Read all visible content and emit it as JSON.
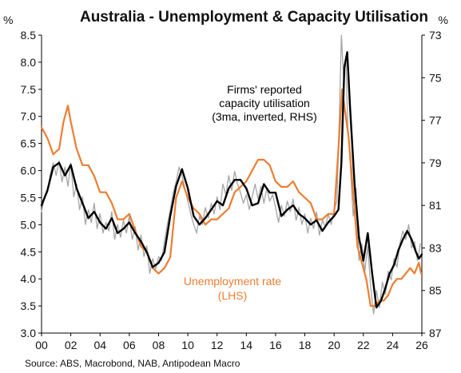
{
  "chart_data": {
    "type": "line",
    "title": "Australia - Unemployment & Capacity Utilisation",
    "left_unit": "%",
    "right_unit": "%",
    "source": "Source: ABS, Macrobond, NAB, Antipodean Macro",
    "x_ticks": [
      "00",
      "02",
      "04",
      "06",
      "08",
      "10",
      "12",
      "14",
      "16",
      "18",
      "20",
      "22",
      "24",
      "26"
    ],
    "left_ticks": [
      "3.0",
      "3.5",
      "4.0",
      "4.5",
      "5.0",
      "5.5",
      "6.0",
      "6.5",
      "7.0",
      "7.5",
      "8.0",
      "8.5"
    ],
    "right_ticks": [
      "73",
      "75",
      "77",
      "79",
      "81",
      "83",
      "85",
      "87"
    ],
    "xlim": [
      2000,
      2026
    ],
    "ylim_left": [
      3.0,
      8.5
    ],
    "ylim_right_inverted": [
      73,
      87
    ],
    "grid": false,
    "annotations": {
      "capacity": [
        "Firms' reported",
        "capacity utilisation",
        "(3ma, inverted, RHS)"
      ],
      "unemployment": [
        "Unemployment rate",
        "(LHS)"
      ]
    },
    "colors": {
      "unemployment": "#ed7d31",
      "capacity_3ma": "#000000",
      "capacity_monthly": "#a6a6a6"
    },
    "series": [
      {
        "name": "Unemployment rate (LHS)",
        "axis": "left",
        "x": [
          2000.0,
          2000.4,
          2000.8,
          2001.2,
          2001.5,
          2001.8,
          2002.0,
          2002.4,
          2002.8,
          2003.2,
          2003.6,
          2004.0,
          2004.4,
          2004.8,
          2005.2,
          2005.6,
          2006.0,
          2006.4,
          2006.8,
          2007.2,
          2007.6,
          2008.0,
          2008.4,
          2008.8,
          2009.2,
          2009.6,
          2010.0,
          2010.4,
          2010.8,
          2011.2,
          2011.6,
          2012.0,
          2012.4,
          2012.8,
          2013.2,
          2013.6,
          2014.0,
          2014.4,
          2014.8,
          2015.2,
          2015.6,
          2016.0,
          2016.4,
          2016.8,
          2017.2,
          2017.6,
          2018.0,
          2018.4,
          2018.8,
          2019.2,
          2019.6,
          2020.0,
          2020.3,
          2020.55,
          2020.8,
          2021.0,
          2021.3,
          2021.6,
          2021.9,
          2022.2,
          2022.5,
          2022.8,
          2023.1,
          2023.4,
          2023.7,
          2024.0,
          2024.3,
          2024.6,
          2024.9,
          2025.2,
          2025.5,
          2025.8,
          2025.95
        ],
        "values": [
          6.8,
          6.6,
          6.3,
          6.4,
          6.9,
          7.2,
          6.9,
          6.4,
          6.1,
          6.1,
          5.9,
          5.6,
          5.6,
          5.4,
          5.1,
          5.1,
          5.2,
          4.9,
          4.6,
          4.5,
          4.2,
          4.1,
          4.2,
          4.4,
          5.5,
          5.8,
          5.5,
          5.3,
          5.2,
          5.0,
          5.1,
          5.1,
          5.2,
          5.3,
          5.6,
          5.7,
          5.8,
          6.0,
          6.2,
          6.2,
          6.1,
          5.8,
          5.7,
          5.7,
          5.8,
          5.6,
          5.5,
          5.4,
          5.1,
          5.1,
          5.2,
          5.2,
          6.4,
          7.5,
          7.0,
          6.6,
          5.6,
          4.6,
          4.3,
          4.0,
          3.5,
          3.5,
          3.6,
          3.6,
          3.7,
          3.9,
          4.0,
          4.0,
          4.1,
          4.2,
          4.1,
          4.3,
          4.1
        ]
      },
      {
        "name": "Firms' reported capacity utilisation (3ma, inverted, RHS)",
        "axis": "right",
        "x": [
          2000.0,
          2000.4,
          2000.8,
          2001.2,
          2001.6,
          2002.0,
          2002.4,
          2002.8,
          2003.2,
          2003.6,
          2004.0,
          2004.4,
          2004.8,
          2005.2,
          2005.6,
          2006.0,
          2006.4,
          2006.8,
          2007.2,
          2007.6,
          2008.0,
          2008.4,
          2008.8,
          2009.2,
          2009.6,
          2010.0,
          2010.4,
          2010.8,
          2011.2,
          2011.6,
          2012.0,
          2012.4,
          2012.8,
          2013.2,
          2013.6,
          2014.0,
          2014.4,
          2014.8,
          2015.2,
          2015.6,
          2016.0,
          2016.4,
          2016.8,
          2017.2,
          2017.6,
          2018.0,
          2018.4,
          2018.8,
          2019.2,
          2019.6,
          2020.0,
          2020.3,
          2020.5,
          2020.7,
          2020.9,
          2021.1,
          2021.4,
          2021.7,
          2022.0,
          2022.3,
          2022.6,
          2022.9,
          2023.2,
          2023.5,
          2023.8,
          2024.1,
          2024.4,
          2024.7,
          2025.0,
          2025.3,
          2025.6,
          2025.8,
          2026.0
        ],
        "values": [
          81.0,
          80.3,
          79.2,
          79.0,
          79.6,
          79.1,
          80.2,
          80.9,
          81.6,
          81.3,
          81.8,
          82.1,
          81.6,
          82.3,
          82.1,
          81.8,
          82.3,
          82.7,
          83.2,
          83.9,
          83.7,
          83.2,
          81.5,
          80.1,
          79.3,
          80.2,
          81.5,
          81.9,
          81.6,
          81.2,
          80.8,
          81.0,
          80.2,
          79.8,
          79.8,
          80.2,
          81.0,
          80.9,
          80.0,
          80.4,
          80.4,
          81.5,
          81.2,
          81.0,
          81.4,
          81.6,
          81.9,
          81.7,
          82.2,
          81.8,
          81.5,
          81.2,
          79.0,
          74.5,
          73.8,
          76.5,
          80.0,
          82.5,
          83.6,
          82.3,
          84.2,
          85.8,
          85.5,
          84.9,
          84.2,
          83.8,
          83.1,
          82.6,
          82.2,
          82.6,
          83.2,
          83.5,
          83.3
        ]
      },
      {
        "name": "Firms' reported capacity utilisation (monthly)",
        "axis": "right",
        "x": [
          2000.0,
          2000.2,
          2000.4,
          2000.6,
          2000.8,
          2001.0,
          2001.2,
          2001.4,
          2001.6,
          2001.8,
          2002.0,
          2002.2,
          2002.4,
          2002.6,
          2002.8,
          2003.0,
          2003.2,
          2003.4,
          2003.6,
          2003.8,
          2004.0,
          2004.2,
          2004.4,
          2004.6,
          2004.8,
          2005.0,
          2005.2,
          2005.4,
          2005.6,
          2005.8,
          2006.0,
          2006.2,
          2006.4,
          2006.6,
          2006.8,
          2007.0,
          2007.2,
          2007.4,
          2007.6,
          2007.8,
          2008.0,
          2008.2,
          2008.4,
          2008.6,
          2008.8,
          2009.0,
          2009.2,
          2009.4,
          2009.6,
          2009.8,
          2010.0,
          2010.2,
          2010.4,
          2010.6,
          2010.8,
          2011.0,
          2011.2,
          2011.4,
          2011.6,
          2011.8,
          2012.0,
          2012.2,
          2012.4,
          2012.6,
          2012.8,
          2013.0,
          2013.2,
          2013.4,
          2013.6,
          2013.8,
          2014.0,
          2014.2,
          2014.4,
          2014.6,
          2014.8,
          2015.0,
          2015.2,
          2015.4,
          2015.6,
          2015.8,
          2016.0,
          2016.2,
          2016.4,
          2016.6,
          2016.8,
          2017.0,
          2017.2,
          2017.4,
          2017.6,
          2017.8,
          2018.0,
          2018.2,
          2018.4,
          2018.6,
          2018.8,
          2019.0,
          2019.2,
          2019.4,
          2019.6,
          2019.8,
          2020.0,
          2020.2,
          2020.35,
          2020.5,
          2020.65,
          2020.8,
          2020.95,
          2021.1,
          2021.3,
          2021.5,
          2021.7,
          2021.9,
          2022.1,
          2022.3,
          2022.5,
          2022.7,
          2022.9,
          2023.1,
          2023.3,
          2023.5,
          2023.7,
          2023.9,
          2024.1,
          2024.3,
          2024.5,
          2024.7,
          2024.9,
          2025.1,
          2025.3,
          2025.5,
          2025.7,
          2025.9
        ],
        "values": [
          81.3,
          80.6,
          80.4,
          79.5,
          79.0,
          79.6,
          78.9,
          79.9,
          79.2,
          80.1,
          79.0,
          80.6,
          80.0,
          81.2,
          80.6,
          81.9,
          81.2,
          81.8,
          80.9,
          82.1,
          81.4,
          82.3,
          81.8,
          82.2,
          81.3,
          82.6,
          81.9,
          82.5,
          81.7,
          82.3,
          81.5,
          82.6,
          82.0,
          83.1,
          82.4,
          83.4,
          82.9,
          84.2,
          83.5,
          84.0,
          83.4,
          83.6,
          82.7,
          81.9,
          81.2,
          80.4,
          79.9,
          79.2,
          79.6,
          80.2,
          80.8,
          81.4,
          81.9,
          82.3,
          81.5,
          81.9,
          81.1,
          81.6,
          80.9,
          81.4,
          80.6,
          81.2,
          80.0,
          80.5,
          79.6,
          80.3,
          79.4,
          80.0,
          80.4,
          80.9,
          80.5,
          81.2,
          80.6,
          80.0,
          80.7,
          80.1,
          80.9,
          80.2,
          80.8,
          80.5,
          81.1,
          81.8,
          81.0,
          81.5,
          80.8,
          81.3,
          80.7,
          81.7,
          81.1,
          81.9,
          81.4,
          82.3,
          81.6,
          82.1,
          81.3,
          82.4,
          81.7,
          82.0,
          81.4,
          81.9,
          81.2,
          80.8,
          77.0,
          73.0,
          75.0,
          74.0,
          77.5,
          79.0,
          81.5,
          80.2,
          83.6,
          82.8,
          84.1,
          82.9,
          84.8,
          86.1,
          85.0,
          85.8,
          84.6,
          85.2,
          84.1,
          84.5,
          83.5,
          83.9,
          82.8,
          82.2,
          82.6,
          81.9,
          83.0,
          82.7,
          83.6,
          82.8
        ]
      }
    ]
  }
}
